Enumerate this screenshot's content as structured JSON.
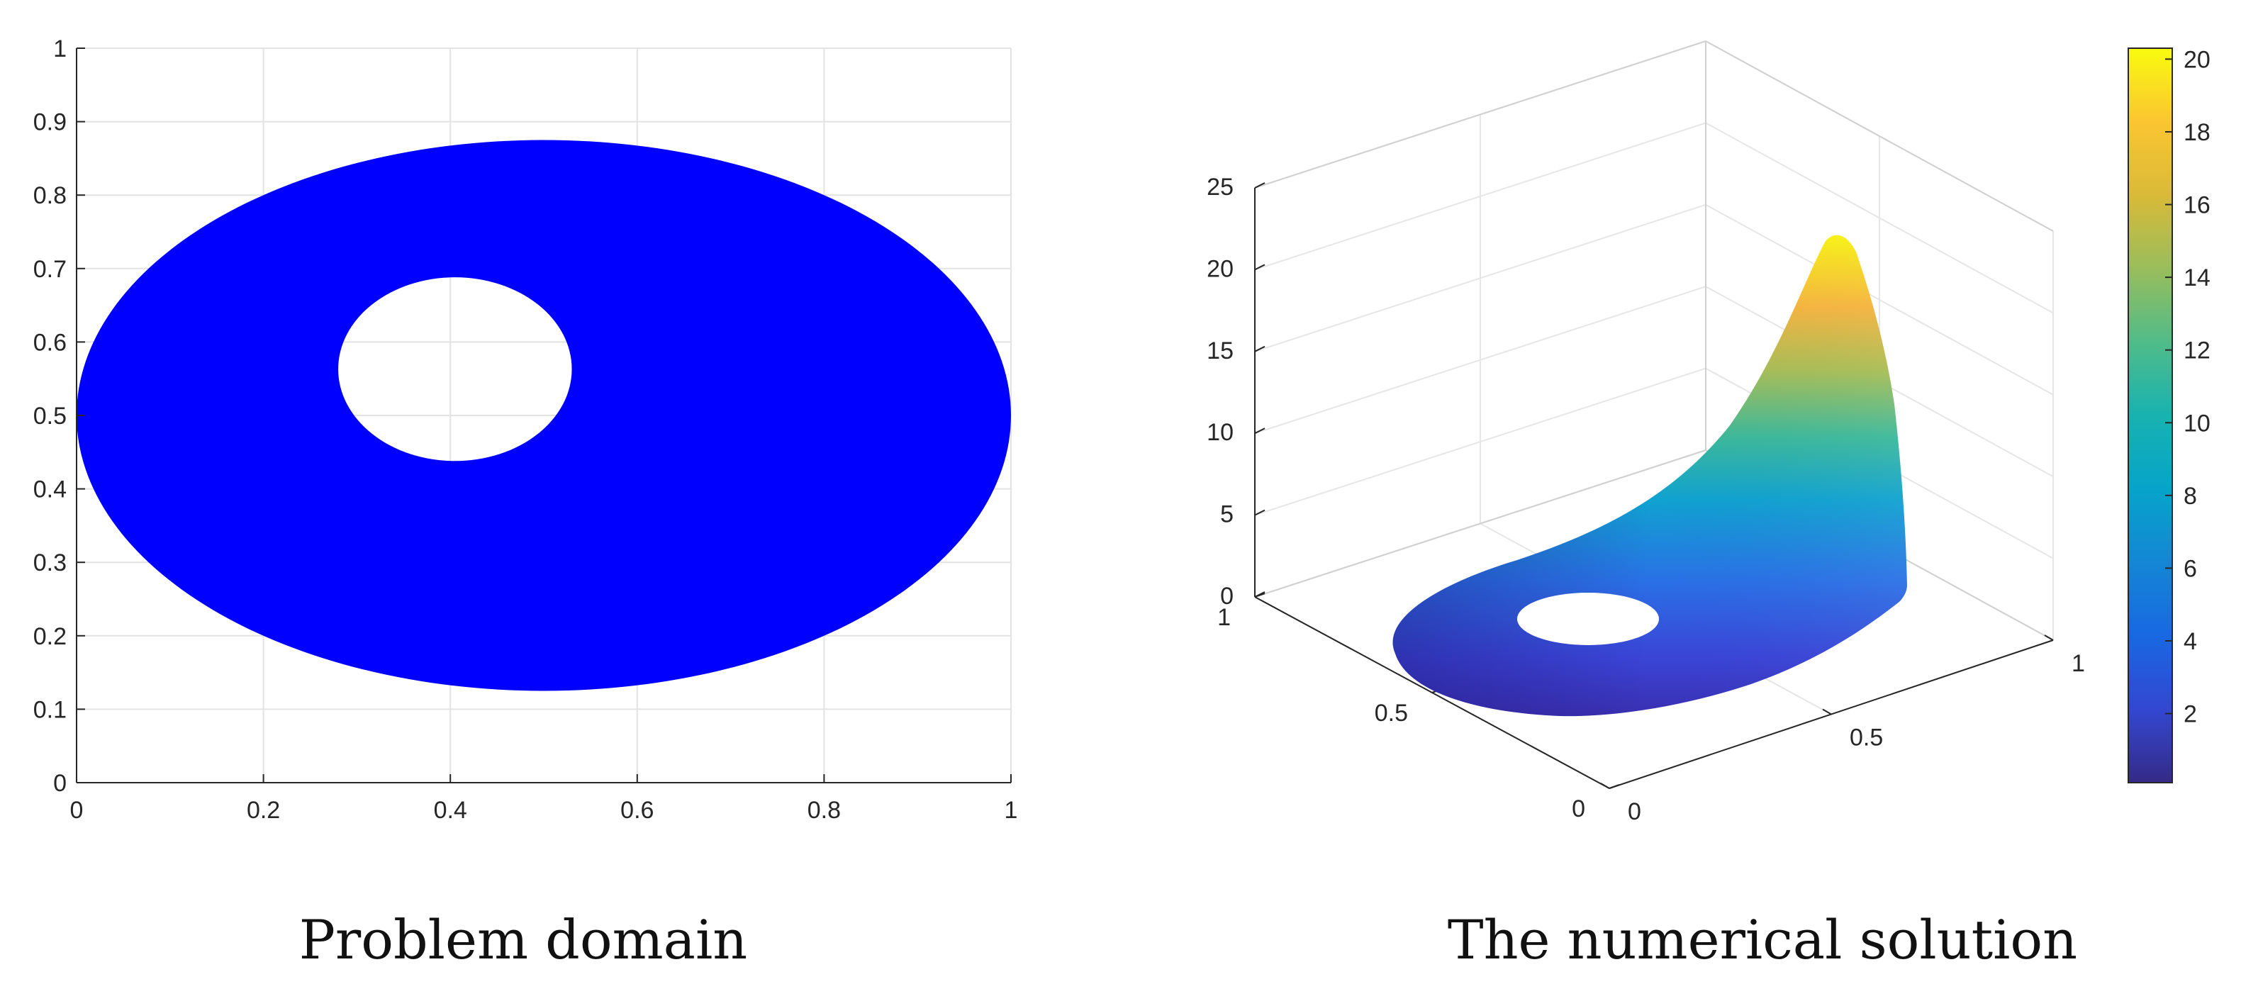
{
  "chart_data": [
    {
      "type": "scatter",
      "title": "",
      "xlabel": "",
      "ylabel": "",
      "xlim": [
        0,
        1
      ],
      "ylim": [
        0,
        1
      ],
      "xticks": [
        "0",
        "0.2",
        "0.4",
        "0.6",
        "0.8",
        "1"
      ],
      "yticks": [
        "0",
        "0.1",
        "0.2",
        "0.3",
        "0.4",
        "0.5",
        "0.6",
        "0.7",
        "0.8",
        "0.9",
        "1"
      ],
      "grid": true,
      "fill_color": "#0000ff",
      "series": [
        {
          "shape": "ellipse",
          "center": [
            0.5,
            0.5
          ],
          "semi_axes": [
            0.5,
            0.375
          ],
          "role": "outer boundary"
        },
        {
          "shape": "ellipse",
          "center": [
            0.405,
            0.563
          ],
          "semi_axes": [
            0.125,
            0.125
          ],
          "role": "hole"
        }
      ],
      "caption": "Problem domain"
    },
    {
      "type": "surface",
      "title": "",
      "xlim": [
        0,
        1
      ],
      "ylim": [
        0,
        1
      ],
      "zlim": [
        0,
        25
      ],
      "xticks": [
        "0",
        "0.5",
        "1"
      ],
      "yticks": [
        "0",
        "0.5",
        "1"
      ],
      "zticks": [
        "0",
        "5",
        "10",
        "15",
        "20",
        "25"
      ],
      "peak_value": 20.3,
      "colormap": "parula",
      "colorbar": {
        "range": [
          0.1,
          20.3
        ],
        "ticks": [
          "2",
          "4",
          "6",
          "8",
          "10",
          "12",
          "14",
          "16",
          "18",
          "20"
        ]
      },
      "caption": "The numerical solution"
    }
  ]
}
